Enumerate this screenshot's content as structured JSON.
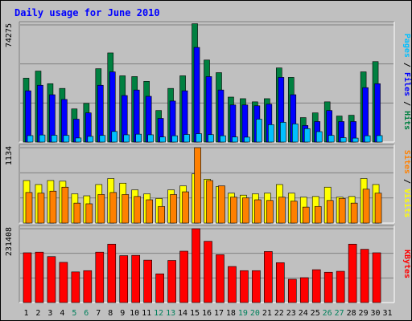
{
  "chart_data": {
    "type": "bar",
    "title": "Daily usage for June 2010",
    "categories": [
      "1",
      "2",
      "3",
      "4",
      "5",
      "6",
      "7",
      "8",
      "9",
      "10",
      "11",
      "12",
      "13",
      "14",
      "15",
      "16",
      "17",
      "18",
      "19",
      "20",
      "21",
      "22",
      "23",
      "24",
      "25",
      "26",
      "27",
      "28",
      "29",
      "30",
      "31"
    ],
    "weekend_days": [
      "5",
      "6",
      "12",
      "13",
      "19",
      "20",
      "26",
      "27"
    ],
    "colors": {
      "background": "#c0c0c0",
      "hits": "#008040",
      "files": "#0000ff",
      "pages": "#00c0ff",
      "visits": "#ffff00",
      "sites": "#ff8000",
      "kbytes": "#ff0000",
      "title": "#0000ff",
      "weekday_label": "#000000",
      "weekend_label": "#00805c"
    },
    "panels": [
      {
        "id": "hits-files-pages",
        "scale_label": "74275",
        "ymax": 74275,
        "legend": [
          {
            "text": "Pages",
            "color": "#00c0ff"
          },
          {
            "text": " / ",
            "color": "#000000"
          },
          {
            "text": "Files",
            "color": "#0000ff"
          },
          {
            "text": " / ",
            "color": "#000000"
          },
          {
            "text": "Hits",
            "color": "#008040"
          }
        ],
        "series": [
          {
            "name": "Hits",
            "values": [
              40500,
              45000,
              37000,
              34000,
              21000,
              24500,
              46500,
              56500,
              42000,
              41500,
              38500,
              20000,
              34000,
              42000,
              75000,
              52000,
              44000,
              28500,
              27500,
              25500,
              27500,
              47000,
              41000,
              15500,
              18500,
              25500,
              16500,
              17000,
              44500,
              51000,
              0
            ]
          },
          {
            "name": "Files",
            "values": [
              32500,
              36000,
              30000,
              27000,
              14500,
              18500,
              36000,
              44500,
              29500,
              33000,
              29000,
              15000,
              26000,
              32500,
              60000,
              41500,
              33000,
              23500,
              23500,
              23000,
              24000,
              41000,
              30000,
              10500,
              13000,
              20000,
              13000,
              13000,
              34500,
              37000,
              0
            ]
          },
          {
            "name": "Pages",
            "values": [
              4100,
              4500,
              4300,
              4200,
              2600,
              3600,
              4200,
              6700,
              4600,
              5000,
              4600,
              3200,
              4000,
              4800,
              5300,
              4700,
              4000,
              3200,
              3100,
              14500,
              11000,
              12500,
              11500,
              8500,
              6600,
              4200,
              2800,
              2500,
              4000,
              4100,
              0
            ]
          }
        ]
      },
      {
        "id": "visits-sites",
        "scale_label": "1134",
        "ymax": 1134,
        "legend": [
          {
            "text": "Sites",
            "color": "#ff8000"
          },
          {
            "text": " / ",
            "color": "#000000"
          },
          {
            "text": "Visits",
            "color": "#ffff00"
          }
        ],
        "series": [
          {
            "name": "Visits",
            "values": [
              640,
              580,
              640,
              630,
              440,
              410,
              580,
              670,
              600,
              500,
              440,
              370,
              500,
              560,
              740,
              660,
              550,
              450,
              420,
              440,
              450,
              580,
              450,
              390,
              400,
              540,
              390,
              400,
              670,
              580,
              0
            ]
          },
          {
            "name": "Sites",
            "values": [
              460,
              450,
              480,
              540,
              300,
              290,
              430,
              460,
              430,
              400,
              350,
              250,
              430,
              470,
              1134,
              640,
              560,
              390,
              380,
              350,
              340,
              390,
              330,
              240,
              250,
              340,
              370,
              300,
              510,
              450,
              0
            ]
          }
        ]
      },
      {
        "id": "kbytes",
        "scale_label": "231408",
        "ymax": 231408,
        "legend": [
          {
            "text": "KBytes",
            "color": "#ff0000"
          }
        ],
        "series": [
          {
            "name": "KBytes",
            "values": [
              156000,
              158000,
              144000,
              126000,
              96000,
              100000,
              158000,
              183000,
              147000,
              148000,
              133000,
              90000,
              132000,
              161000,
              231408,
              192000,
              150000,
              113000,
              100000,
              100000,
              160000,
              125000,
              73000,
              78000,
              103000,
              95000,
              98000,
              183000,
              167000,
              156000,
              0
            ]
          }
        ]
      }
    ]
  }
}
